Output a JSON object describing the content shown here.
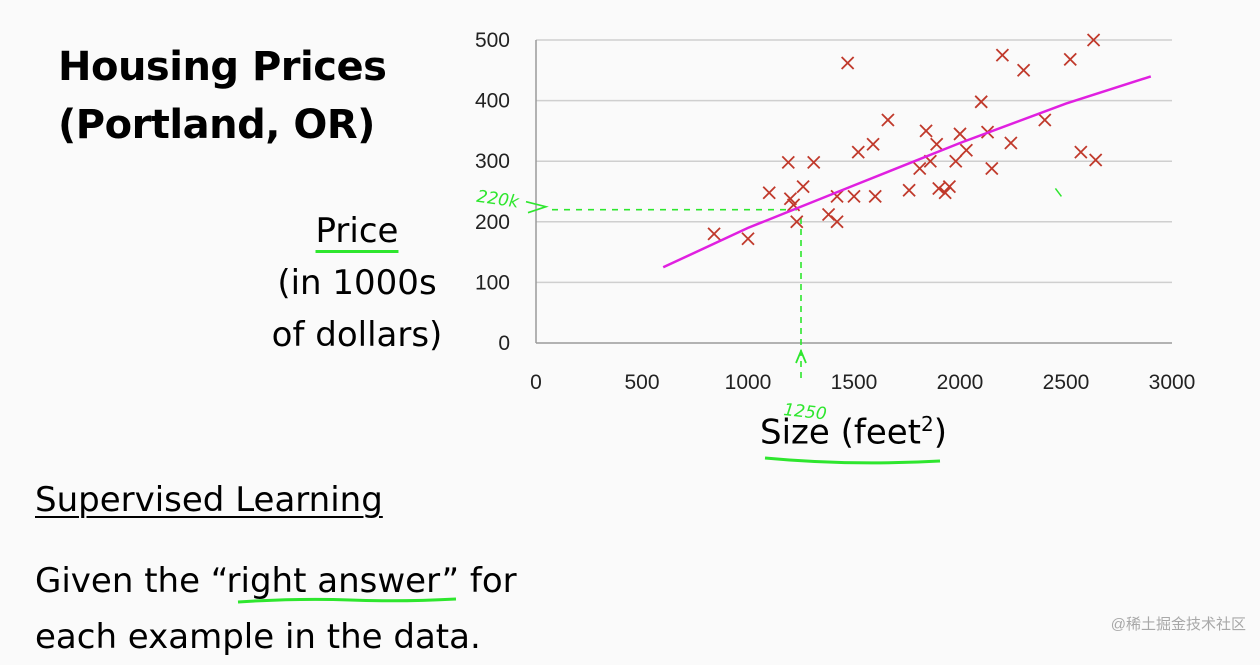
{
  "title": {
    "line1": "Housing Prices",
    "line2": "(Portland, OR)"
  },
  "ylabel": {
    "line1": "Price",
    "line2": "(in 1000s",
    "line3": "of dollars)"
  },
  "xlabel": {
    "main": "Size (feet",
    "sup": "2",
    "close": ")"
  },
  "section": {
    "heading": "Supervised Learning",
    "line1": "Given the “right answer” for",
    "line2": "each example in the data."
  },
  "annotations": {
    "x_mark": "1250",
    "y_mark": "220k"
  },
  "watermark": "@稀土掘金技术社区",
  "colors": {
    "points": "#c0392b",
    "fit_line": "#e020e0",
    "annotation": "#2ee62e",
    "grid": "#cfcfcf"
  },
  "chart_data": {
    "type": "scatter",
    "xlim": [
      0,
      3000
    ],
    "ylim": [
      0,
      500
    ],
    "x_ticks": [
      0,
      500,
      1000,
      1500,
      2000,
      2500,
      3000
    ],
    "y_ticks": [
      0,
      100,
      200,
      300,
      400,
      500
    ],
    "grid": "horizontal",
    "points": [
      [
        840,
        180
      ],
      [
        1000,
        172
      ],
      [
        1100,
        248
      ],
      [
        1190,
        298
      ],
      [
        1200,
        238
      ],
      [
        1215,
        228
      ],
      [
        1230,
        200
      ],
      [
        1260,
        258
      ],
      [
        1310,
        298
      ],
      [
        1380,
        212
      ],
      [
        1420,
        200
      ],
      [
        1420,
        242
      ],
      [
        1470,
        462
      ],
      [
        1500,
        242
      ],
      [
        1520,
        315
      ],
      [
        1590,
        328
      ],
      [
        1600,
        242
      ],
      [
        1660,
        368
      ],
      [
        1760,
        252
      ],
      [
        1810,
        288
      ],
      [
        1840,
        350
      ],
      [
        1860,
        300
      ],
      [
        1890,
        328
      ],
      [
        1900,
        255
      ],
      [
        1930,
        248
      ],
      [
        1950,
        258
      ],
      [
        1980,
        300
      ],
      [
        2000,
        345
      ],
      [
        2030,
        318
      ],
      [
        2100,
        398
      ],
      [
        2130,
        348
      ],
      [
        2150,
        288
      ],
      [
        2200,
        475
      ],
      [
        2240,
        330
      ],
      [
        2300,
        450
      ],
      [
        2400,
        368
      ],
      [
        2520,
        468
      ],
      [
        2570,
        315
      ],
      [
        2630,
        500
      ],
      [
        2640,
        302
      ]
    ],
    "fit_line": [
      [
        600,
        125
      ],
      [
        1000,
        190
      ],
      [
        1500,
        260
      ],
      [
        2000,
        330
      ],
      [
        2500,
        395
      ],
      [
        2900,
        440
      ]
    ]
  }
}
